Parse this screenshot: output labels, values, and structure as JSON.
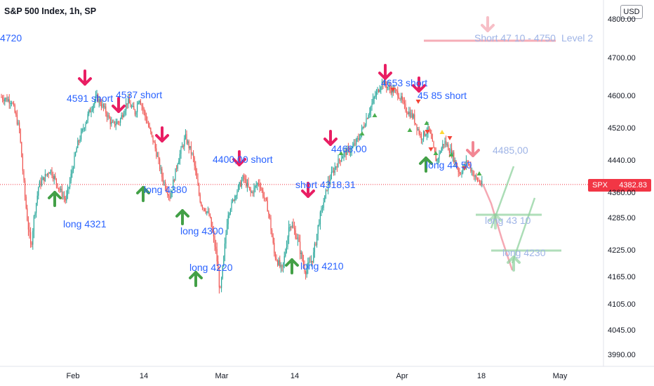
{
  "header": {
    "title": "S&P 500 Index, 1h, SP",
    "currency": "USD"
  },
  "price_tag": {
    "symbol": "SPX",
    "value": "4382.83"
  },
  "colors": {
    "up": "#26a69a",
    "down": "#ef5350",
    "short_arrow": "#e91e63",
    "long_arrow": "#43a047",
    "label": "#2962ff",
    "price_tag": "#f23645"
  },
  "annotations": {
    "a0": "4720",
    "a1": "4591 short",
    "a2": "4537 short",
    "a3": "long 4380",
    "a4": "long  4321",
    "a5": "long  4300",
    "a6": "long  4220",
    "a7": "4400,00 short",
    "a8": "long  4210",
    "a9": "short  4318,31",
    "a10": "4468,00",
    "a11": "4653 short",
    "a12": "45 85  short",
    "a13": "long  44 50",
    "a14": "4485,00",
    "a15": "long 43 10",
    "a16": "long  4230",
    "a17": "Short 47 10 - 4750",
    "a18": "Level 2"
  },
  "chart_data": {
    "type": "candlestick",
    "title": "S&P 500 Index, 1h, SP",
    "x_ticks": [
      "Feb",
      "14",
      "Mar",
      "14",
      "Apr",
      "18",
      "May"
    ],
    "y_ticks": [
      "4800.00",
      "4700.00",
      "4600.00",
      "4520.00",
      "4440.00",
      "4360.00",
      "4285.00",
      "4225.00",
      "4165.00",
      "4105.00",
      "4045.00",
      "3990.00"
    ],
    "ylim": [
      3970,
      4820
    ],
    "last_price": 4382.83,
    "price_path": [
      [
        0,
        4600
      ],
      [
        3,
        4590
      ],
      [
        5,
        4520
      ],
      [
        7,
        4290
      ],
      [
        8,
        4230
      ],
      [
        10,
        4380
      ],
      [
        13,
        4420
      ],
      [
        16,
        4360
      ],
      [
        17,
        4340
      ],
      [
        20,
        4480
      ],
      [
        23,
        4560
      ],
      [
        25,
        4600
      ],
      [
        27,
        4570
      ],
      [
        29,
        4530
      ],
      [
        31,
        4540
      ],
      [
        33,
        4590
      ],
      [
        35,
        4560
      ],
      [
        36,
        4600
      ],
      [
        38,
        4540
      ],
      [
        40,
        4480
      ],
      [
        42,
        4400
      ],
      [
        44,
        4350
      ],
      [
        46,
        4440
      ],
      [
        48,
        4500
      ],
      [
        50,
        4450
      ],
      [
        52,
        4330
      ],
      [
        54,
        4300
      ],
      [
        56,
        4220
      ],
      [
        57,
        4130
      ],
      [
        59,
        4300
      ],
      [
        61,
        4360
      ],
      [
        63,
        4400
      ],
      [
        65,
        4360
      ],
      [
        67,
        4390
      ],
      [
        69,
        4330
      ],
      [
        71,
        4220
      ],
      [
        73,
        4180
      ],
      [
        75,
        4280
      ],
      [
        77,
        4250
      ],
      [
        79,
        4180
      ],
      [
        81,
        4210
      ],
      [
        83,
        4300
      ],
      [
        85,
        4390
      ],
      [
        87,
        4430
      ],
      [
        89,
        4460
      ],
      [
        91,
        4470
      ],
      [
        93,
        4500
      ],
      [
        95,
        4550
      ],
      [
        97,
        4600
      ],
      [
        99,
        4640
      ],
      [
        101,
        4620
      ],
      [
        103,
        4610
      ],
      [
        105,
        4570
      ],
      [
        107,
        4550
      ],
      [
        109,
        4500
      ],
      [
        111,
        4520
      ],
      [
        113,
        4440
      ],
      [
        115,
        4490
      ],
      [
        117,
        4460
      ],
      [
        119,
        4410
      ],
      [
        121,
        4440
      ],
      [
        123,
        4400
      ],
      [
        125,
        4380
      ]
    ],
    "projection": [
      {
        "name": "short path",
        "points": [
          [
            0,
            4400
          ],
          [
            1,
            4310
          ],
          [
            2,
            4230
          ]
        ]
      },
      {
        "name": "long path 1",
        "points": [
          [
            0,
            4300
          ],
          [
            1,
            4440
          ]
        ]
      },
      {
        "name": "long path 2",
        "points": [
          [
            0,
            4210
          ],
          [
            1,
            4340
          ]
        ]
      }
    ],
    "levels": [
      {
        "label": "Short 47 10 - 4750",
        "value": 4745
      },
      {
        "label": "long 43 10",
        "value": 4308
      },
      {
        "label": "long  4230",
        "value": 4230
      }
    ]
  }
}
